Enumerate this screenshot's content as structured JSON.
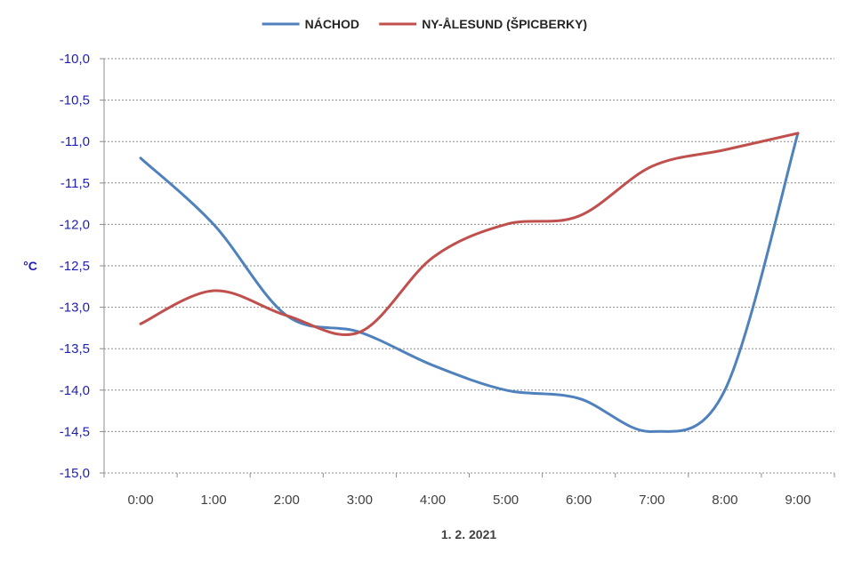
{
  "chart_data": {
    "type": "line",
    "title": "",
    "xlabel": "1. 2. 2021",
    "ylabel": "°C",
    "categories": [
      "0:00",
      "1:00",
      "2:00",
      "3:00",
      "4:00",
      "5:00",
      "6:00",
      "7:00",
      "8:00",
      "9:00"
    ],
    "ylim": [
      -15.0,
      -10.0
    ],
    "yticks": [
      "-10,0",
      "-10,5",
      "-11,0",
      "-11,5",
      "-12,0",
      "-12,5",
      "-13,0",
      "-13,5",
      "-14,0",
      "-14,5",
      "-15,0"
    ],
    "grid": true,
    "legend_position": "top",
    "smooth": true,
    "series": [
      {
        "name": "NÁCHOD",
        "color": "#4f81bd",
        "values": [
          -11.2,
          -12.0,
          -13.1,
          -13.3,
          -13.7,
          -14.0,
          -14.1,
          -14.5,
          -14.0,
          -10.9
        ]
      },
      {
        "name": "NY-ÅLESUND (ŠPICBERKY)",
        "color": "#c0504d",
        "values": [
          -13.2,
          -12.8,
          -13.1,
          -13.3,
          -12.4,
          -12.0,
          -11.9,
          -11.3,
          -11.1,
          -10.9
        ]
      }
    ],
    "colors": {
      "axis_text": "#1f1fb4",
      "x_text": "#404040",
      "grid": "#8c8c8c"
    }
  }
}
